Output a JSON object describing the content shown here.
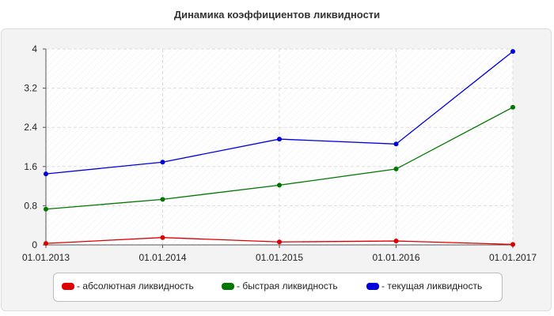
{
  "chart_data": {
    "type": "line",
    "title": "Динамика коэффициентов ликвидности",
    "xlabel": "",
    "ylabel": "",
    "categories": [
      "01.01.2013",
      "01.01.2014",
      "01.01.2015",
      "01.01.2016",
      "01.01.2017"
    ],
    "ylim": [
      0,
      4
    ],
    "yticks": [
      "0",
      "0.8",
      "1.6",
      "2.4",
      "3.2",
      "4"
    ],
    "grid": true,
    "legend_position": "bottom",
    "series": [
      {
        "name": "- абсолютная ликвидность",
        "color": "#dd0000",
        "values": [
          0.03,
          0.15,
          0.06,
          0.08,
          0.01
        ]
      },
      {
        "name": "- быстрая ликвидность",
        "color": "#007700",
        "values": [
          0.73,
          0.93,
          1.22,
          1.55,
          2.81
        ]
      },
      {
        "name": "- текущая ликвидность",
        "color": "#0000dd",
        "values": [
          1.45,
          1.69,
          2.16,
          2.06,
          3.95
        ]
      }
    ]
  }
}
